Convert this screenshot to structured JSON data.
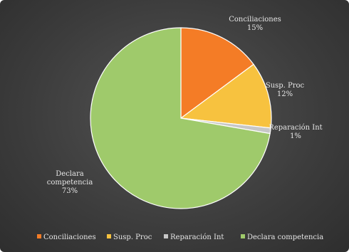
{
  "chart_data": {
    "type": "pie",
    "title": "",
    "slices": [
      {
        "name": "Conciliaciones",
        "value": 15,
        "label_pct": "15%",
        "color": "#f47c26"
      },
      {
        "name": "Susp. Proc",
        "value": 12,
        "label_pct": "12%",
        "color": "#f7c23f"
      },
      {
        "name": "Reparación Int",
        "value": 1,
        "label_pct": "1%",
        "color": "#c7c7c7"
      },
      {
        "name": "Declara competencia",
        "value": 73,
        "label_pct": "73%",
        "color": "#9fca6b"
      }
    ],
    "label_lines": {
      "Conciliaciones": [
        "Conciliaciones"
      ],
      "Susp. Proc": [
        "Susp. Proc"
      ],
      "Reparación Int": [
        "Reparación Int"
      ],
      "Declara competencia": [
        "Declara",
        "competencia"
      ]
    },
    "legend": {
      "position": "bottom",
      "entries": [
        "Conciliaciones",
        "Susp. Proc",
        "Reparación Int",
        "Declara competencia"
      ]
    }
  }
}
